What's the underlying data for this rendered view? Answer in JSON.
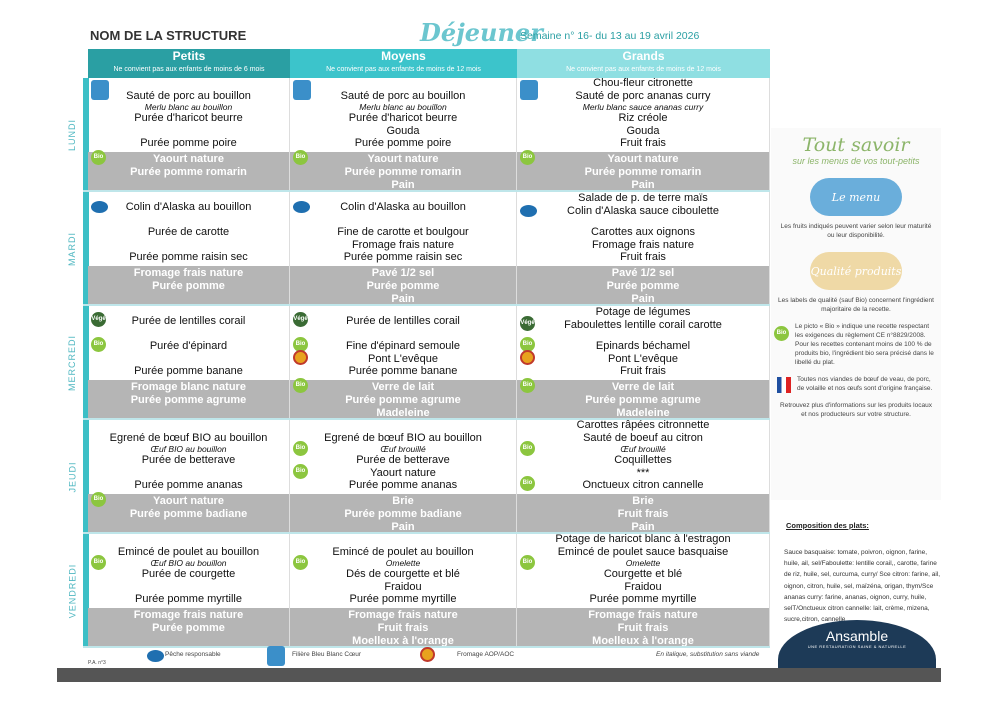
{
  "header": {
    "structure": "NOM DE LA STRUCTURE",
    "meal": "Déjeuner",
    "week": "Semaine n° 16- du 13 au 19 avril 2026"
  },
  "groups": [
    {
      "name": "Petits",
      "note": "Ne convient pas aux enfants de moins de 6 mois",
      "color": "#2a9fa3"
    },
    {
      "name": "Moyens",
      "note": "Ne convient pas aux enfants de moins de 12 mois",
      "color": "#3cc4cb"
    },
    {
      "name": "Grands",
      "note": "Ne convient pas aux enfants de moins de 12 mois",
      "color": "#8fdfe2"
    }
  ],
  "days": [
    {
      "name": "LUNDI",
      "cells": [
        {
          "main": [
            {
              "t": "Sauté de porc au bouillon",
              "icon": "bbc"
            },
            {
              "t": "Merlu blanc au bouillon",
              "i": true
            },
            {
              "t": "Purée d'haricot beurre"
            },
            {
              "t": ""
            },
            {
              "t": "Purée pomme poire"
            }
          ],
          "dessert": [
            {
              "t": "Yaourt nature",
              "icon": "bio"
            },
            {
              "t": "Purée pomme romarin"
            }
          ]
        },
        {
          "main": [
            {
              "t": "Sauté de porc au bouillon",
              "icon": "bbc"
            },
            {
              "t": "Merlu blanc au bouillon",
              "i": true
            },
            {
              "t": "Purée d'haricot beurre"
            },
            {
              "t": "Gouda"
            },
            {
              "t": "Purée pomme poire"
            }
          ],
          "dessert": [
            {
              "t": "Yaourt nature",
              "icon": "bio"
            },
            {
              "t": "Purée pomme romarin"
            },
            {
              "t": "Pain"
            }
          ]
        },
        {
          "main": [
            {
              "t": "Chou-fleur citronette"
            },
            {
              "t": "Sauté de porc ananas curry",
              "icon": "bbc"
            },
            {
              "t": "Merlu blanc sauce ananas curry",
              "i": true
            },
            {
              "t": "Riz créole"
            },
            {
              "t": "Gouda"
            },
            {
              "t": "Fruit frais"
            }
          ],
          "dessert": [
            {
              "t": "Yaourt nature",
              "icon": "bio"
            },
            {
              "t": "Purée pomme romarin"
            },
            {
              "t": "Pain"
            }
          ]
        }
      ]
    },
    {
      "name": "MARDI",
      "cells": [
        {
          "main": [
            {
              "t": "Colin d'Alaska au bouillon",
              "icon": "fish"
            },
            {
              "t": ""
            },
            {
              "t": "Purée de carotte"
            },
            {
              "t": ""
            },
            {
              "t": "Purée pomme raisin sec"
            }
          ],
          "dessert": [
            {
              "t": "Fromage frais nature"
            },
            {
              "t": "Purée pomme"
            }
          ]
        },
        {
          "main": [
            {
              "t": "Colin d'Alaska au bouillon",
              "icon": "fish"
            },
            {
              "t": ""
            },
            {
              "t": "Fine de carotte et boulgour"
            },
            {
              "t": "Fromage frais nature"
            },
            {
              "t": "Purée pomme raisin sec"
            }
          ],
          "dessert": [
            {
              "t": "Pavé 1/2 sel"
            },
            {
              "t": "Purée pomme"
            },
            {
              "t": "Pain"
            }
          ]
        },
        {
          "main": [
            {
              "t": "Salade de p. de terre maïs"
            },
            {
              "t": "Colin d'Alaska sauce ciboulette",
              "icon": "fish"
            },
            {
              "t": ""
            },
            {
              "t": "Carottes aux oignons"
            },
            {
              "t": "Fromage frais nature"
            },
            {
              "t": "Fruit frais"
            }
          ],
          "dessert": [
            {
              "t": "Pavé 1/2 sel"
            },
            {
              "t": "Purée pomme"
            },
            {
              "t": "Pain"
            }
          ]
        }
      ]
    },
    {
      "name": "MERCREDI",
      "cells": [
        {
          "main": [
            {
              "t": "Purée de lentilles corail",
              "icon": "veg"
            },
            {
              "t": ""
            },
            {
              "t": "Purée d'épinard",
              "icon": "bio"
            },
            {
              "t": ""
            },
            {
              "t": "Purée pomme banane"
            }
          ],
          "dessert": [
            {
              "t": "Fromage blanc nature"
            },
            {
              "t": "Purée pomme agrume"
            }
          ]
        },
        {
          "main": [
            {
              "t": "Purée de lentilles corail",
              "icon": "veg"
            },
            {
              "t": ""
            },
            {
              "t": "Fine d'épinard semoule",
              "icon": "bio"
            },
            {
              "t": "Pont L'evêque",
              "icon": "aop"
            },
            {
              "t": "Purée pomme banane"
            }
          ],
          "dessert": [
            {
              "t": "Verre de lait",
              "icon": "bio"
            },
            {
              "t": "Purée pomme agrume"
            },
            {
              "t": "Madeleine"
            }
          ]
        },
        {
          "main": [
            {
              "t": "Potage de légumes"
            },
            {
              "t": "Faboulettes lentille corail carotte",
              "icon": "veg"
            },
            {
              "t": ""
            },
            {
              "t": "Epinards béchamel",
              "icon": "bio"
            },
            {
              "t": "Pont L'evêque",
              "icon": "aop"
            },
            {
              "t": "Fruit frais"
            }
          ],
          "dessert": [
            {
              "t": "Verre de lait",
              "icon": "bio"
            },
            {
              "t": "Purée pomme agrume"
            },
            {
              "t": "Madeleine"
            }
          ]
        }
      ]
    },
    {
      "name": "JEUDI",
      "cells": [
        {
          "main": [
            {
              "t": "Egrené de bœuf BIO au bouillon"
            },
            {
              "t": "Œuf BIO au bouillon",
              "i": true
            },
            {
              "t": "Purée de betterave"
            },
            {
              "t": ""
            },
            {
              "t": "Purée pomme ananas"
            }
          ],
          "dessert": [
            {
              "t": "Yaourt  nature",
              "icon": "bio"
            },
            {
              "t": "Purée pomme badiane"
            }
          ]
        },
        {
          "main": [
            {
              "t": "Egrené de bœuf BIO au bouillon"
            },
            {
              "t": "Œuf brouillé",
              "i": true,
              "icon": "bio"
            },
            {
              "t": "Purée de betterave"
            },
            {
              "t": "Yaourt nature",
              "icon": "bio"
            },
            {
              "t": "Purée pomme ananas"
            }
          ],
          "dessert": [
            {
              "t": "Brie"
            },
            {
              "t": "Purée pomme badiane"
            },
            {
              "t": "Pain"
            }
          ]
        },
        {
          "main": [
            {
              "t": "Carottes râpées citronnette"
            },
            {
              "t": "Sauté de boeuf au citron"
            },
            {
              "t": "Œuf brouillé",
              "i": true,
              "icon": "bio"
            },
            {
              "t": "Coquillettes"
            },
            {
              "t": "***"
            },
            {
              "t": "Onctueux citron cannelle",
              "icon": "bio"
            }
          ],
          "dessert": [
            {
              "t": "Brie"
            },
            {
              "t": "Fruit frais"
            },
            {
              "t": "Pain"
            }
          ]
        }
      ]
    },
    {
      "name": "VENDREDI",
      "cells": [
        {
          "main": [
            {
              "t": "Emincé de poulet au bouillon"
            },
            {
              "t": "Œuf BIO au bouillon",
              "i": true,
              "icon": "bio"
            },
            {
              "t": "Purée de courgette"
            },
            {
              "t": ""
            },
            {
              "t": "Purée pomme myrtille"
            }
          ],
          "dessert": [
            {
              "t": "Fromage frais nature"
            },
            {
              "t": "Purée pomme"
            }
          ]
        },
        {
          "main": [
            {
              "t": "Emincé de poulet au bouillon"
            },
            {
              "t": "Omelette",
              "i": true,
              "icon": "bio"
            },
            {
              "t": "Dés de courgette et blé"
            },
            {
              "t": "Fraidou"
            },
            {
              "t": "Purée pomme myrtille"
            }
          ],
          "dessert": [
            {
              "t": "Fromage frais nature"
            },
            {
              "t": "Fruit frais"
            },
            {
              "t": "Moelleux à l'orange"
            }
          ]
        },
        {
          "main": [
            {
              "t": "Potage de haricot blanc à l'estragon"
            },
            {
              "t": "Emincé de poulet sauce basquaise"
            },
            {
              "t": "Omelette",
              "i": true,
              "icon": "bio"
            },
            {
              "t": "Courgette et blé"
            },
            {
              "t": "Fraidou"
            },
            {
              "t": "Purée pomme myrtille"
            }
          ],
          "dessert": [
            {
              "t": "Fromage frais nature"
            },
            {
              "t": "Fruit frais"
            },
            {
              "t": "Moelleux à l'orange"
            }
          ]
        }
      ]
    }
  ],
  "icons": {
    "bio": "Bio",
    "fish": "",
    "veg": "Végé",
    "aop": "",
    "bbc": ""
  },
  "panel": {
    "title": "Tout savoir",
    "subtitle": "sur les menus de vos tout-petits",
    "cloud1": "Le menu",
    "cloud1_color": "#6aaedb",
    "text1": "Les fruits indiqués peuvent varier selon leur maturité ou leur disponibilité.",
    "cloud2": "Qualité produits",
    "cloud2_color": "#efd9a6",
    "text2": "Les labels de qualité (sauf Bio) concernent l'ingrédient majoritaire de la recette.",
    "text3": "Le picto « Bio » indique une recette respectant les exigences du règlement CE n°8829/2008. Pour les recettes contenant moins de 100 % de produits bio, l'ingrédient bio sera précisé dans le libellé du plat.",
    "text4": "Toutes nos viandes de bœuf de veau, de porc, de volaille et nos œufs sont d'origine française.",
    "text5": "Retrouvez plus d'informations sur les produits locaux et nos producteurs sur votre structure."
  },
  "composition": {
    "title": "Composition des plats:",
    "text": "Sauce basquaise: tomate, poivron, oignon, farine, huile, ail, sel/Faboulette: lentille corail,, carotte, farine de riz, huile, sel, curcuma, curry/ Sce citron: farine, ail, oignon, citron, huile, sel, maïzéna, origan, thym/Sce ananas curry: farine, ananas, oignon, curry, huile, selT/Onctueux citron cannelle: lait, crème, mizena, sucre,citron, cannelle"
  },
  "logo": {
    "name": "Ansamble",
    "tagline": "UNE RESTAURATION SAINE & NATURELLE"
  },
  "legend": {
    "pa": "P.A. n°3",
    "fish": "Pêche responsable",
    "bbc": "Filière Bleu Blanc Cœur",
    "aop": "Fromage AOP/AOC",
    "italic": "En italique, substitution sans viande"
  }
}
